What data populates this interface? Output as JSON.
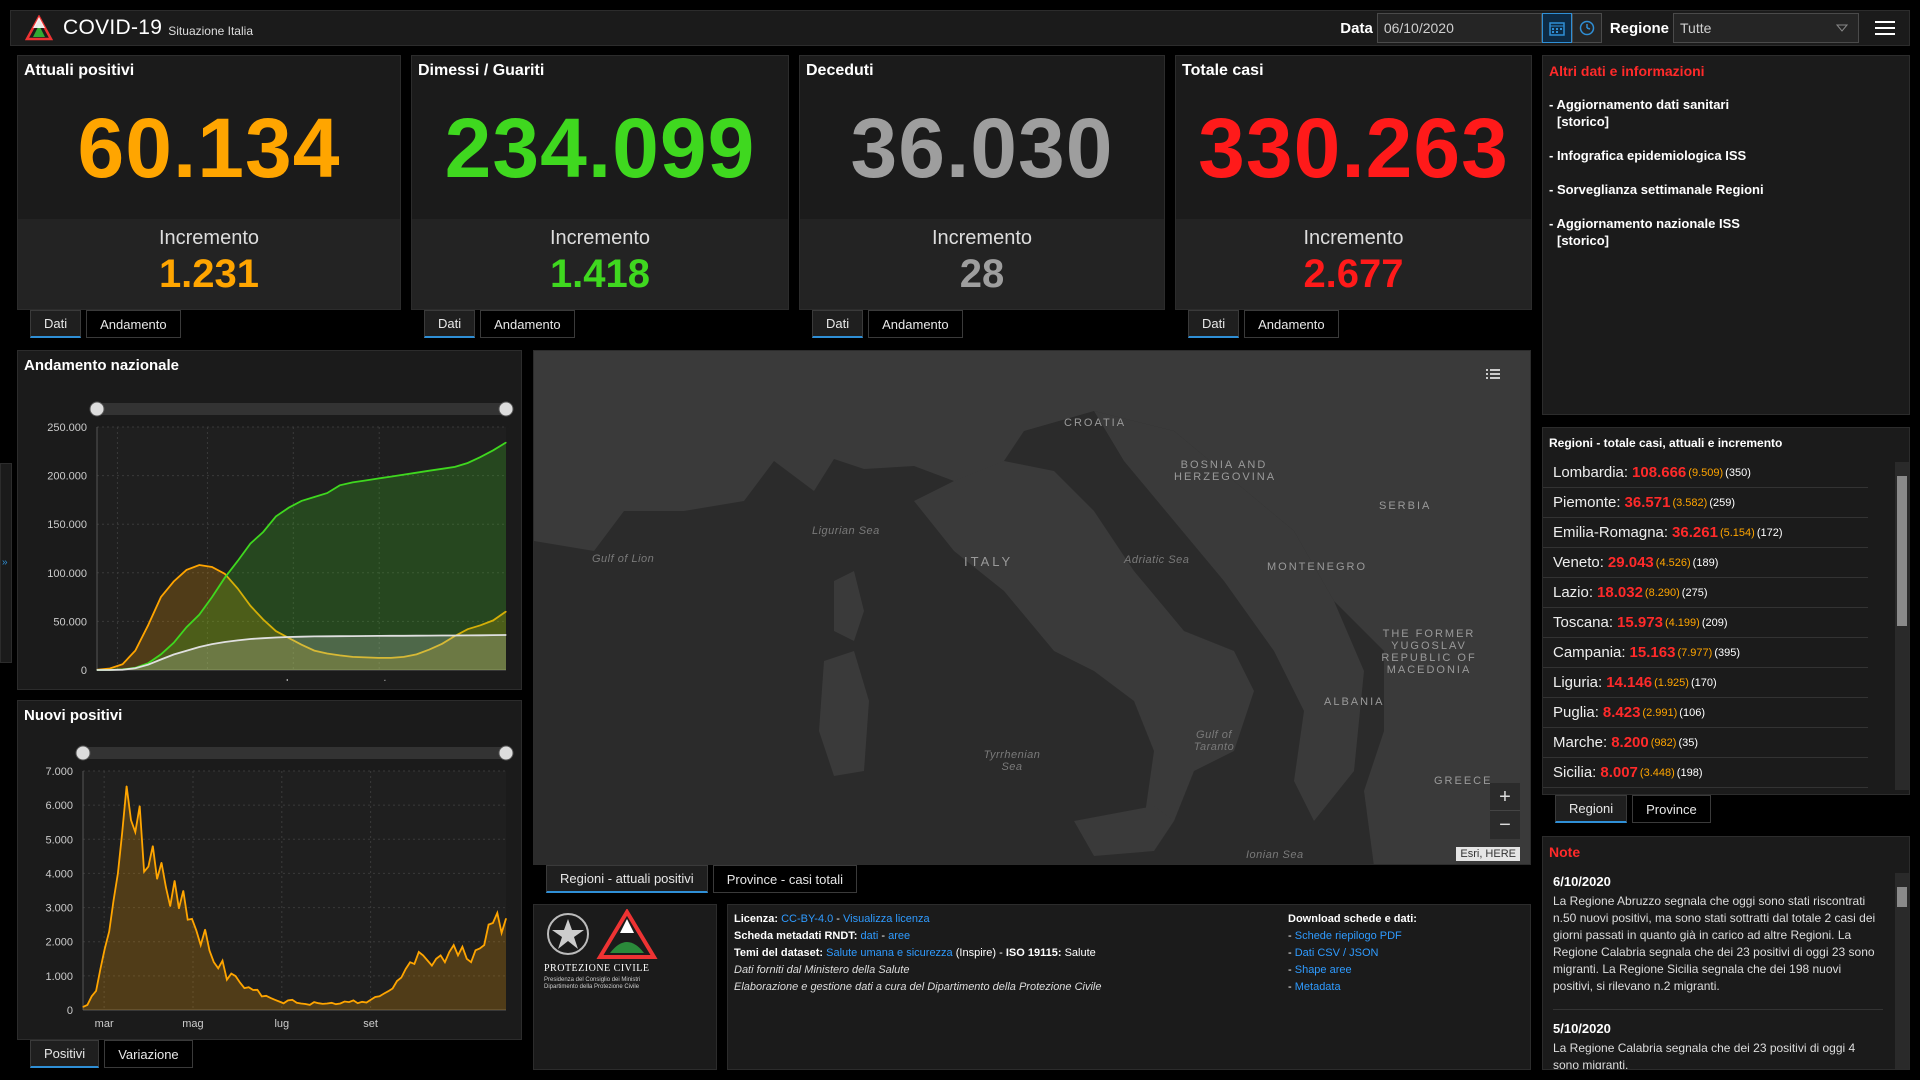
{
  "header": {
    "title": "COVID-19",
    "subtitle": "Situazione Italia",
    "date_label": "Data",
    "date_value": "06/10/2020",
    "region_label": "Regione",
    "region_value": "Tutte",
    "icons": {
      "logo": "triangle-logo-icon",
      "calendar": "calendar-icon",
      "clock": "clock-icon",
      "dropdown": "chevron-down-icon",
      "menu": "hamburger-menu-icon"
    }
  },
  "colors": {
    "orange": "#ffa500",
    "green": "#3fd81f",
    "gray": "#9e9e9e",
    "red": "#ff1a1a",
    "link": "#2f9bff",
    "accent": "#2f8fd6"
  },
  "cards": [
    {
      "title": "Attuali positivi",
      "value": "60.134",
      "inc_label": "Incremento",
      "inc_value": "1.231",
      "color": "#ffa500",
      "tabs": [
        "Dati",
        "Andamento"
      ]
    },
    {
      "title": "Dimessi / Guariti",
      "value": "234.099",
      "inc_label": "Incremento",
      "inc_value": "1.418",
      "color": "#3fd81f",
      "tabs": [
        "Dati",
        "Andamento"
      ]
    },
    {
      "title": "Deceduti",
      "value": "36.030",
      "inc_label": "Incremento",
      "inc_value": "28",
      "color": "#9e9e9e",
      "tabs": [
        "Dati",
        "Andamento"
      ]
    },
    {
      "title": "Totale casi",
      "value": "330.263",
      "inc_label": "Incremento",
      "inc_value": "2.677",
      "color": "#ff1a1a",
      "tabs": [
        "Dati",
        "Andamento"
      ]
    }
  ],
  "info": {
    "title": "Altri dati e informazioni",
    "items": [
      {
        "text": "- Aggiornamento dati sanitari",
        "sub": "[storico]"
      },
      {
        "text": "- Infografica epidemiologica ISS",
        "sub": ""
      },
      {
        "text": "- Sorveglianza settimanale Regioni",
        "sub": ""
      },
      {
        "text": "- Aggiornamento nazionale ISS",
        "sub": "[storico]"
      }
    ]
  },
  "regions": {
    "title": "Regioni - totale casi, attuali e incremento",
    "rows": [
      {
        "name": "Lombardia:",
        "total": "108.666",
        "current": "9.509",
        "inc": "350"
      },
      {
        "name": "Piemonte:",
        "total": "36.571",
        "current": "3.582",
        "inc": "259"
      },
      {
        "name": "Emilia-Romagna:",
        "total": "36.261",
        "current": "5.154",
        "inc": "172"
      },
      {
        "name": "Veneto:",
        "total": "29.043",
        "current": "4.526",
        "inc": "189"
      },
      {
        "name": "Lazio:",
        "total": "18.032",
        "current": "8.290",
        "inc": "275"
      },
      {
        "name": "Toscana:",
        "total": "15.973",
        "current": "4.199",
        "inc": "209"
      },
      {
        "name": "Campania:",
        "total": "15.163",
        "current": "7.977",
        "inc": "395"
      },
      {
        "name": "Liguria:",
        "total": "14.146",
        "current": "1.925",
        "inc": "170"
      },
      {
        "name": "Puglia:",
        "total": "8.423",
        "current": "2.991",
        "inc": "106"
      },
      {
        "name": "Marche:",
        "total": "8.200",
        "current": "982",
        "inc": "35"
      },
      {
        "name": "Sicilia:",
        "total": "8.007",
        "current": "3.448",
        "inc": "198"
      }
    ],
    "tabs": [
      "Regioni",
      "Province"
    ]
  },
  "notes": {
    "title": "Note",
    "entries": [
      {
        "date": "6/10/2020",
        "text": "La Regione Abruzzo segnala che oggi sono stati riscontrati n.50 nuovi positivi, ma sono stati sottratti dal totale 2 casi dei giorni passati in quanto già in carico ad altre Regioni. La Regione Calabria segnala che dei 23 positivi di oggi 23 sono migranti. La Regione Sicilia segnala che dei 198 nuovi positivi, si rilevano n.2 migranti."
      },
      {
        "date": "5/10/2020",
        "text": "La Regione Calabria segnala che dei 23 positivi di oggi 4 sono migranti."
      }
    ]
  },
  "map": {
    "labels": {
      "croatia": "CROATIA",
      "bosnia": "BOSNIA AND HERZEGOVINA",
      "serbia": "SERBIA",
      "italy": "ITALY",
      "montenegro": "MONTENEGRO",
      "macedonia": "THE FORMER YUGOSLAV REPUBLIC OF MACEDONIA",
      "albania": "ALBANIA",
      "greece": "GREECE"
    },
    "seas": {
      "lion": "Gulf of Lion",
      "ligurian": "Ligurian Sea",
      "adriatic": "Adriatic Sea",
      "tyrrhenian": "Tyrrhenian Sea",
      "taranto": "Gulf of Taranto",
      "ionian": "Ionian Sea"
    },
    "attribution": "Esri, HERE",
    "zoom_in": "+",
    "zoom_out": "−",
    "tabs": [
      "Regioni - attuali positivi",
      "Province - casi totali"
    ],
    "icons": {
      "legend": "legend-list-icon"
    }
  },
  "footer": {
    "logo_text": "PROTEZIONE CIVILE",
    "logo_sub1": "Presidenza del Consiglio dei Ministri",
    "logo_sub2": "Dipartimento della Protezione Civile",
    "license_label": "Licenza:",
    "license_link": "CC-BY-4.0",
    "license_sep": " - ",
    "license_view": "Visualizza licenza",
    "meta_label": "Scheda metadati RNDT:",
    "meta_link1": "dati",
    "meta_link2": "aree",
    "themes_label": "Temi del dataset:",
    "themes_link": "Salute umana e sicurezza",
    "themes_tail": "(Inspire) - ",
    "themes_iso": "ISO 19115:",
    "themes_iso_val": "Salute",
    "source": "Dati forniti dal Ministero della Salute",
    "processing": "Elaborazione e gestione dati a cura del Dipartimento della Protezione Civile",
    "download_title": "Download schede e dati:",
    "downloads": [
      "Schede riepilogo PDF",
      "Dati CSV / JSON",
      "Shape aree",
      "Metadata"
    ]
  },
  "charts_tabs": [
    "Positivi",
    "Variazione"
  ],
  "chart_data": [
    {
      "type": "line",
      "title": "Andamento nazionale",
      "x_ticks": [
        "mar",
        "mag",
        "lug",
        "set"
      ],
      "y_ticks": [
        "0",
        "50.000",
        "100.000",
        "150.000",
        "200.000",
        "250.000"
      ],
      "ylim": [
        0,
        250000
      ],
      "x": [
        "24/02",
        "01/03",
        "08/03",
        "15/03",
        "22/03",
        "29/03",
        "05/04",
        "12/04",
        "19/04",
        "26/04",
        "03/05",
        "10/05",
        "17/05",
        "24/05",
        "31/05",
        "07/06",
        "14/06",
        "21/06",
        "28/06",
        "05/07",
        "12/07",
        "19/07",
        "26/07",
        "02/08",
        "09/08",
        "16/08",
        "23/08",
        "30/08",
        "06/09",
        "13/09",
        "20/09",
        "27/09",
        "06/10"
      ],
      "series": [
        {
          "name": "Attuali positivi",
          "color": "#ffa500",
          "values": [
            200,
            1500,
            6000,
            20000,
            46000,
            75000,
            91000,
            103000,
            108000,
            106000,
            99000,
            84000,
            66000,
            52000,
            40000,
            33000,
            26000,
            20000,
            17000,
            15000,
            13500,
            13000,
            12500,
            12500,
            13500,
            16000,
            21000,
            27000,
            35000,
            42000,
            46000,
            51000,
            60134
          ]
        },
        {
          "name": "Dimessi / Guariti",
          "color": "#3fd81f",
          "values": [
            0,
            100,
            600,
            2300,
            7000,
            16000,
            28000,
            44000,
            57000,
            75000,
            95000,
            112000,
            130000,
            142000,
            158000,
            167000,
            174000,
            178000,
            182000,
            190000,
            193000,
            195000,
            197000,
            199000,
            201000,
            203000,
            205000,
            207000,
            209000,
            213000,
            219000,
            226000,
            234099
          ]
        },
        {
          "name": "Deceduti",
          "color": "#e0e0e0",
          "values": [
            0,
            30,
            300,
            1800,
            5500,
            10800,
            15900,
            19900,
            23700,
            26600,
            28800,
            30500,
            31900,
            32700,
            33400,
            33900,
            34300,
            34600,
            34700,
            34800,
            34900,
            35000,
            35100,
            35150,
            35200,
            35300,
            35400,
            35450,
            35500,
            35600,
            35700,
            35900,
            36030
          ]
        }
      ]
    },
    {
      "type": "area",
      "title": "Nuovi positivi",
      "x_ticks": [
        "mar",
        "mag",
        "lug",
        "set"
      ],
      "y_ticks": [
        "0",
        "1.000",
        "2.000",
        "3.000",
        "4.000",
        "5.000",
        "6.000",
        "7.000"
      ],
      "ylim": [
        0,
        7000
      ],
      "series": [
        {
          "name": "Nuovi positivi",
          "color": "#ffa500",
          "values": [
            90,
            150,
            400,
            560,
            1200,
            1800,
            2300,
            3200,
            4000,
            5200,
            6557,
            5560,
            5210,
            5974,
            4050,
            4200,
            4805,
            3836,
            4316,
            3599,
            3039,
            3786,
            2972,
            3493,
            2646,
            2667,
            2324,
            1900,
            2357,
            1739,
            1402,
            1221,
            1443,
            888,
            1065,
            992,
            802,
            642,
            669,
            585,
            593,
            397,
            416,
            355,
            300,
            250,
            197,
            282,
            300,
            210,
            190,
            175,
            150,
            230,
            200,
            180,
            190,
            210,
            170,
            190,
            250,
            230,
            280,
            200,
            240,
            220,
            300,
            380,
            400,
            480,
            550,
            630,
            850,
            950,
            1200,
            1400,
            1350,
            1700,
            1600,
            1450,
            1300,
            1500,
            1600,
            1400,
            1700,
            1900,
            1600,
            1850,
            1500,
            1400,
            1750,
            1800,
            1900,
            2500,
            2548,
            2843,
            2257,
            2677
          ]
        }
      ]
    }
  ]
}
